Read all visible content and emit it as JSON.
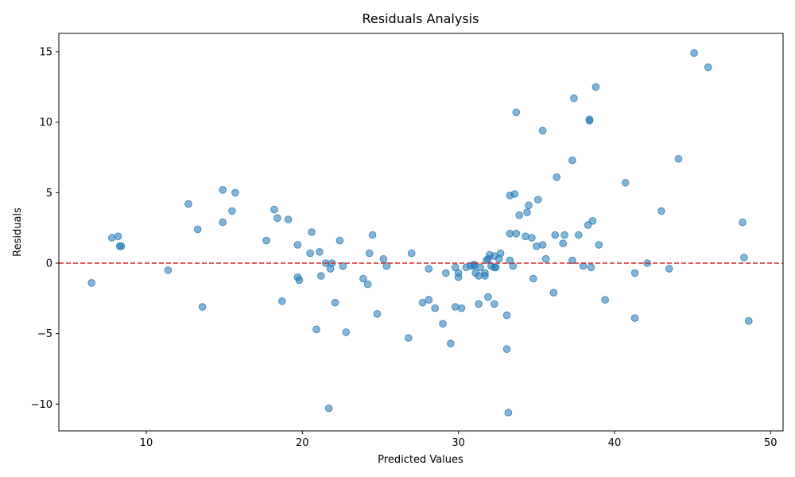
{
  "chart_data": {
    "type": "scatter",
    "title": "Residuals Analysis",
    "xlabel": "Predicted Values",
    "ylabel": "Residuals",
    "xlim": [
      4.4,
      50.8
    ],
    "ylim": [
      -11.9,
      16.3
    ],
    "xticks": [
      10,
      20,
      30,
      40,
      50
    ],
    "yticks": [
      -10,
      -5,
      0,
      5,
      10,
      15
    ],
    "ytick_labels": [
      "−10",
      "−5",
      "0",
      "5",
      "10",
      "15"
    ],
    "grid": false,
    "legend": "none",
    "point_color": "#1f77b4",
    "point_alpha": 0.55,
    "reference_line": {
      "y": 0,
      "color": "#d62728",
      "style": "dashed"
    },
    "points": [
      [
        6.5,
        -1.4
      ],
      [
        7.8,
        1.8
      ],
      [
        8.2,
        1.9
      ],
      [
        8.3,
        1.2
      ],
      [
        8.4,
        1.2
      ],
      [
        11.4,
        -0.5
      ],
      [
        12.7,
        4.2
      ],
      [
        13.3,
        2.4
      ],
      [
        13.6,
        -3.1
      ],
      [
        14.9,
        5.2
      ],
      [
        14.9,
        2.9
      ],
      [
        15.5,
        3.7
      ],
      [
        15.7,
        5.0
      ],
      [
        17.7,
        1.6
      ],
      [
        18.2,
        3.8
      ],
      [
        18.4,
        3.2
      ],
      [
        18.7,
        -2.7
      ],
      [
        19.1,
        3.1
      ],
      [
        19.7,
        1.3
      ],
      [
        19.7,
        -1.0
      ],
      [
        19.8,
        -1.2
      ],
      [
        20.5,
        0.7
      ],
      [
        20.6,
        2.2
      ],
      [
        20.9,
        -4.7
      ],
      [
        21.1,
        0.8
      ],
      [
        21.2,
        -0.9
      ],
      [
        21.5,
        0.0
      ],
      [
        21.7,
        -10.3
      ],
      [
        21.8,
        -0.4
      ],
      [
        21.9,
        0.0
      ],
      [
        22.1,
        -2.8
      ],
      [
        22.4,
        1.6
      ],
      [
        22.6,
        -0.2
      ],
      [
        22.8,
        -4.9
      ],
      [
        23.9,
        -1.1
      ],
      [
        24.2,
        -1.5
      ],
      [
        24.3,
        0.7
      ],
      [
        24.5,
        2.0
      ],
      [
        24.8,
        -3.6
      ],
      [
        25.2,
        0.3
      ],
      [
        25.4,
        -0.2
      ],
      [
        26.8,
        -5.3
      ],
      [
        27.0,
        0.7
      ],
      [
        27.7,
        -2.8
      ],
      [
        28.1,
        -0.4
      ],
      [
        28.1,
        -2.6
      ],
      [
        28.5,
        -3.2
      ],
      [
        29.0,
        -4.3
      ],
      [
        29.2,
        -0.7
      ],
      [
        29.5,
        -5.7
      ],
      [
        29.8,
        -0.3
      ],
      [
        29.8,
        -3.1
      ],
      [
        30.0,
        -0.7
      ],
      [
        30.0,
        -1.0
      ],
      [
        30.2,
        -3.2
      ],
      [
        30.5,
        -0.3
      ],
      [
        30.8,
        -0.2
      ],
      [
        31.0,
        -0.2
      ],
      [
        31.0,
        -0.1
      ],
      [
        31.1,
        -0.7
      ],
      [
        31.3,
        -0.9
      ],
      [
        31.3,
        -2.9
      ],
      [
        31.4,
        -0.3
      ],
      [
        31.7,
        -0.9
      ],
      [
        31.7,
        -0.7
      ],
      [
        31.8,
        0.2
      ],
      [
        31.9,
        0.3
      ],
      [
        31.9,
        -2.4
      ],
      [
        32.0,
        0.6
      ],
      [
        32.1,
        -0.2
      ],
      [
        32.3,
        -0.3
      ],
      [
        32.3,
        -2.9
      ],
      [
        32.3,
        0.5
      ],
      [
        32.4,
        -0.3
      ],
      [
        32.6,
        0.3
      ],
      [
        32.7,
        0.7
      ],
      [
        33.1,
        -3.7
      ],
      [
        33.1,
        -6.1
      ],
      [
        33.2,
        -10.6
      ],
      [
        33.3,
        2.1
      ],
      [
        33.3,
        0.2
      ],
      [
        33.3,
        4.8
      ],
      [
        33.5,
        -0.2
      ],
      [
        33.6,
        4.9
      ],
      [
        33.7,
        2.1
      ],
      [
        33.7,
        10.7
      ],
      [
        33.9,
        3.4
      ],
      [
        34.3,
        1.9
      ],
      [
        34.4,
        3.6
      ],
      [
        34.5,
        4.1
      ],
      [
        34.7,
        1.8
      ],
      [
        34.8,
        -1.1
      ],
      [
        35.0,
        1.2
      ],
      [
        35.1,
        4.5
      ],
      [
        35.4,
        1.3
      ],
      [
        35.4,
        9.4
      ],
      [
        35.6,
        0.3
      ],
      [
        36.1,
        -2.1
      ],
      [
        36.2,
        2.0
      ],
      [
        36.3,
        6.1
      ],
      [
        36.7,
        1.4
      ],
      [
        36.8,
        2.0
      ],
      [
        37.3,
        0.2
      ],
      [
        37.3,
        7.3
      ],
      [
        37.4,
        11.7
      ],
      [
        37.7,
        2.0
      ],
      [
        38.0,
        -0.2
      ],
      [
        38.3,
        2.7
      ],
      [
        38.4,
        10.1
      ],
      [
        38.4,
        10.2
      ],
      [
        38.5,
        -0.3
      ],
      [
        38.6,
        3.0
      ],
      [
        38.8,
        12.5
      ],
      [
        39.0,
        1.3
      ],
      [
        39.4,
        -2.6
      ],
      [
        40.7,
        5.7
      ],
      [
        41.3,
        -3.9
      ],
      [
        41.3,
        -0.7
      ],
      [
        42.1,
        0.0
      ],
      [
        43.0,
        3.7
      ],
      [
        43.5,
        -0.4
      ],
      [
        44.1,
        7.4
      ],
      [
        45.1,
        14.9
      ],
      [
        46.0,
        13.9
      ],
      [
        48.2,
        2.9
      ],
      [
        48.3,
        0.4
      ],
      [
        48.6,
        -4.1
      ]
    ]
  }
}
